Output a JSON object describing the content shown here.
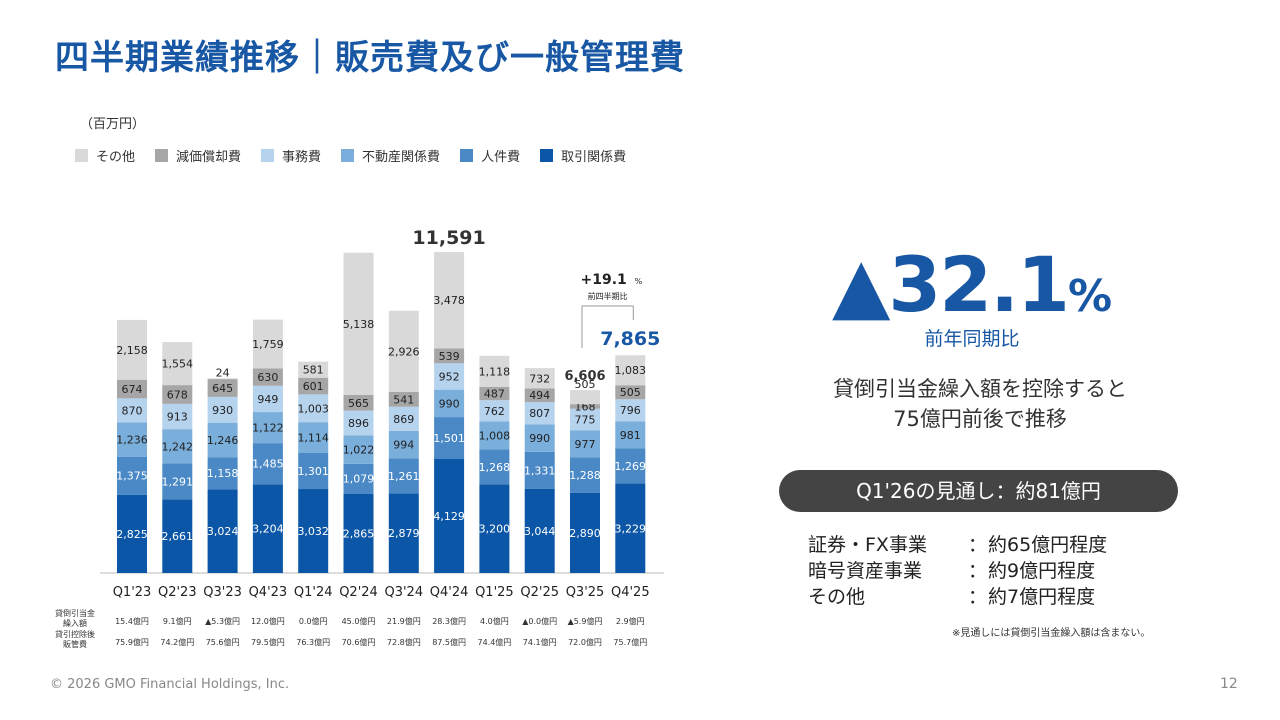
{
  "page": {
    "title": "四半期業績推移｜販売費及び一般管理費",
    "copyright": "© 2026 GMO Financial Holdings, Inc.",
    "page_number": "12"
  },
  "colors": {
    "brand": "#1857a4",
    "series": [
      "#0b56a6",
      "#4a89c6",
      "#7aaedb",
      "#b6d3ee",
      "#a6a6a6",
      "#d9d9d9"
    ]
  },
  "chart_data": {
    "type": "bar",
    "stacked": true,
    "unit": "（百万円）",
    "categories": [
      "Q1'23",
      "Q2'23",
      "Q3'23",
      "Q4'23",
      "Q1'24",
      "Q2'24",
      "Q3'24",
      "Q4'24",
      "Q1'25",
      "Q2'25",
      "Q3'25",
      "Q4'25"
    ],
    "series": [
      {
        "name": "取引関係費",
        "values": [
          2825,
          2661,
          3024,
          3204,
          3032,
          2865,
          2879,
          4129,
          3200,
          3044,
          2890,
          3229
        ]
      },
      {
        "name": "人件費",
        "values": [
          1375,
          1291,
          1158,
          1485,
          1301,
          1079,
          1261,
          1501,
          1268,
          1331,
          1288,
          1269
        ]
      },
      {
        "name": "不動産関係費",
        "values": [
          1236,
          1242,
          1246,
          1122,
          1114,
          1022,
          994,
          990,
          1008,
          990,
          977,
          981
        ]
      },
      {
        "name": "事務費",
        "values": [
          870,
          913,
          930,
          949,
          1003,
          896,
          869,
          952,
          762,
          807,
          775,
          796
        ]
      },
      {
        "name": "減価償却費",
        "values": [
          674,
          678,
          645,
          630,
          601,
          565,
          541,
          539,
          487,
          494,
          168,
          505
        ]
      },
      {
        "name": "その他",
        "values": [
          2158,
          1554,
          24,
          1759,
          581,
          5138,
          2926,
          3478,
          1118,
          732,
          505,
          1083
        ]
      }
    ],
    "value_labels": [
      [
        "2,825",
        "2,661",
        "3,024",
        "3,204",
        "3,032",
        "2,865",
        "2,879",
        "4,129",
        "3,200",
        "3,044",
        "2,890",
        "3,229"
      ],
      [
        "1,375",
        "1,291",
        "1,158",
        "1,485",
        "1,301",
        "1,079",
        "1,261",
        "1,501",
        "1,268",
        "1,331",
        "1,288",
        "1,269"
      ],
      [
        "1,236",
        "1,242",
        "1,246",
        "1,122",
        "1,114",
        "1,022",
        "994",
        "990",
        "1,008",
        "990",
        "977",
        "981"
      ],
      [
        "870",
        "913",
        "930",
        "949",
        "1,003",
        "896",
        "869",
        "952",
        "762",
        "807",
        "775",
        "796"
      ],
      [
        "674",
        "678",
        "645",
        "630",
        "601",
        "565",
        "541",
        "539",
        "487",
        "494",
        "168",
        "505"
      ],
      [
        "2,158",
        "1,554",
        "24",
        "1,759",
        "581",
        "5,138",
        "2,926",
        "3,478",
        "1,118",
        "732",
        "505",
        "1,083"
      ]
    ],
    "legend_order": [
      "その他",
      "減価償却費",
      "事務費",
      "不動産関係費",
      "人件費",
      "取引関係費"
    ],
    "total_labels": [
      {
        "index": 7,
        "text": "11,591"
      },
      {
        "index": 10,
        "text": "6,606"
      },
      {
        "index": 11,
        "text": "7,865"
      }
    ],
    "qoq_annotation": {
      "value": "+19.1",
      "unit": "%",
      "label": "前四半期比"
    },
    "bottom_rows": [
      {
        "label_line1": "貸倒引当金",
        "label_line2": "繰入額",
        "values": [
          "15.4億円",
          "9.1億円",
          "▲5.3億円",
          "12.0億円",
          "0.0億円",
          "45.0億円",
          "21.9億円",
          "28.3億円",
          "4.0億円",
          "▲0.0億円",
          "▲5.9億円",
          "2.9億円"
        ]
      },
      {
        "label_line1": "貸引控除後",
        "label_line2": "販管費",
        "values": [
          "75.9億円",
          "74.2億円",
          "75.6億円",
          "79.5億円",
          "76.3億円",
          "70.6億円",
          "72.8億円",
          "87.5億円",
          "74.4億円",
          "74.1億円",
          "72.0億円",
          "75.7億円"
        ]
      }
    ],
    "ylim": [
      0,
      11591
    ]
  },
  "summary": {
    "yoy_value": "▲32.1",
    "yoy_unit": "%",
    "yoy_label": "前年同期比",
    "note_line1": "貸倒引当金繰入額を控除すると",
    "note_line2": "75億円前後で推移",
    "outlook_label": "Q1'26の見通し：約81億円",
    "breakdown": [
      {
        "name": "証券・FX事業",
        "colon": "：",
        "value": "約65億円程度"
      },
      {
        "name": "暗号資産事業",
        "colon": "：",
        "value": "約9億円程度"
      },
      {
        "name": "その他",
        "colon": "：",
        "value": "約7億円程度"
      }
    ],
    "footnote": "※見通しには貸倒引当金繰入額は含まない。"
  }
}
